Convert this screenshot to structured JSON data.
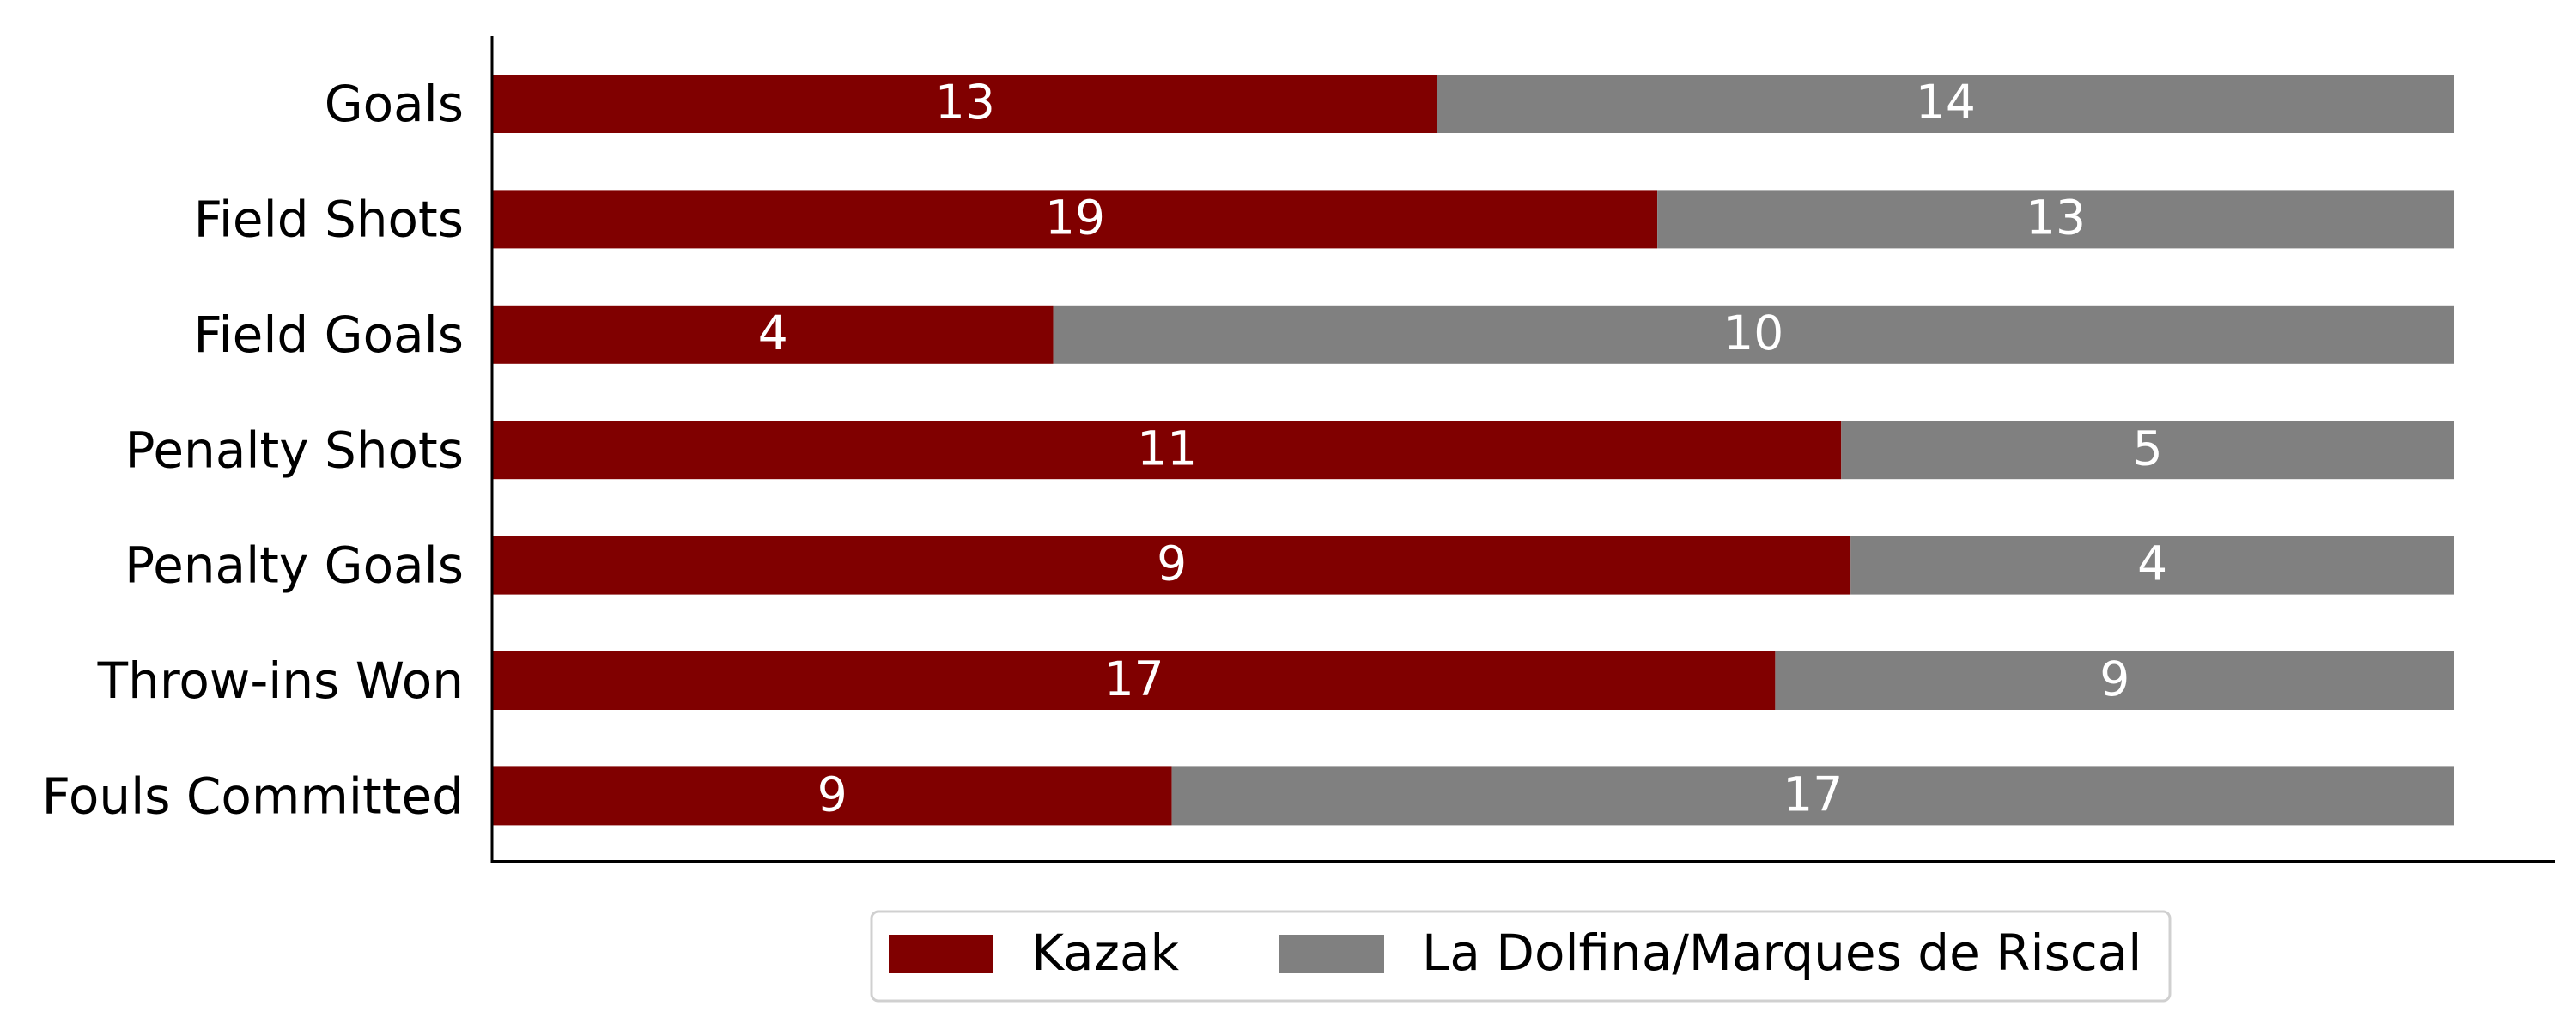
{
  "chart_data": {
    "type": "bar",
    "orientation": "horizontal",
    "stacked": "percent",
    "categories": [
      "Goals",
      "Field Shots",
      "Field Goals",
      "Penalty Shots",
      "Penalty Goals",
      "Throw-ins Won",
      "Fouls Committed"
    ],
    "series": [
      {
        "name": "Kazak",
        "color": "#800000",
        "values": [
          13,
          19,
          4,
          11,
          9,
          17,
          9
        ]
      },
      {
        "name": "La Dolfina/Marques de Riscal",
        "color": "#808080",
        "values": [
          14,
          13,
          10,
          5,
          4,
          9,
          17
        ]
      }
    ],
    "title": "",
    "xlabel": "",
    "ylabel": "",
    "xticks_visible": false,
    "grid": false,
    "legend": "bottom-center"
  }
}
